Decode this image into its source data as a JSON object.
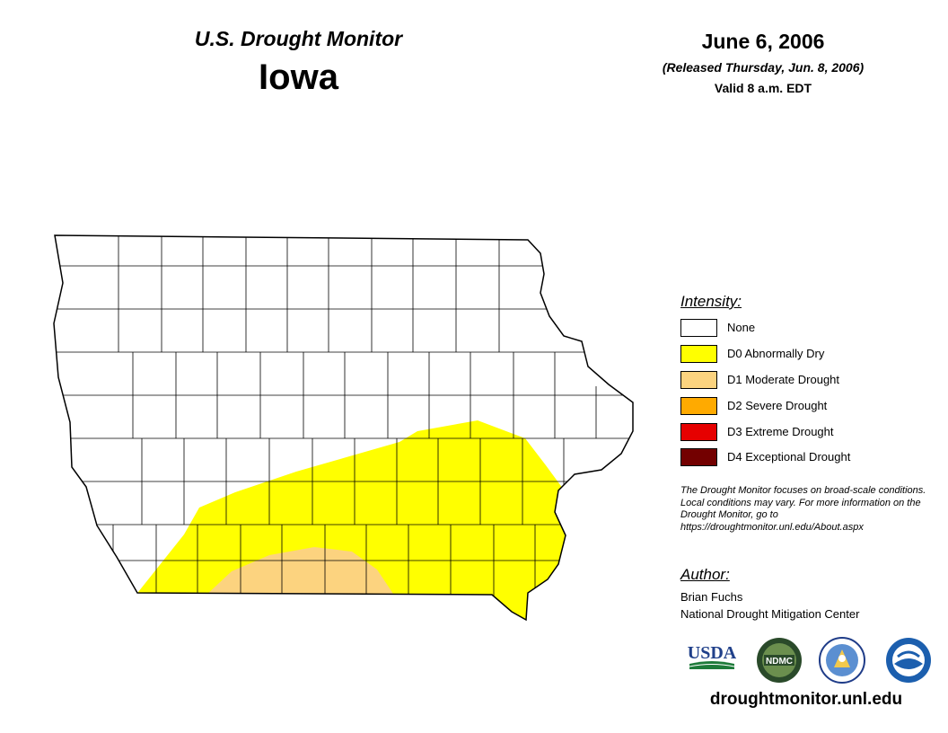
{
  "header": {
    "subtitle": "U.S. Drought Monitor",
    "state": "Iowa",
    "date": "June 6, 2006",
    "released": "(Released Thursday, Jun. 8, 2006)",
    "valid": "Valid 8 a.m. EDT"
  },
  "legend": {
    "title": "Intensity:",
    "items": [
      {
        "label": "None",
        "color": "#ffffff"
      },
      {
        "label": "D0 Abnormally Dry",
        "color": "#ffff00"
      },
      {
        "label": "D1 Moderate Drought",
        "color": "#fcd37f"
      },
      {
        "label": "D2 Severe Drought",
        "color": "#ffaa00"
      },
      {
        "label": "D3 Extreme Drought",
        "color": "#e60000"
      },
      {
        "label": "D4 Exceptional Drought",
        "color": "#730000"
      }
    ]
  },
  "note": "The Drought Monitor focuses on broad-scale conditions. Local conditions may vary. For more information on the Drought Monitor, go to https://droughtmonitor.unl.edu/About.aspx",
  "author": {
    "title": "Author:",
    "name": "Brian Fuchs",
    "organization": "National Drought Mitigation Center"
  },
  "logos": {
    "usda": "USDA",
    "ndmc": "NDMC"
  },
  "website": "droughtmonitor.unl.edu",
  "map": {
    "region": "Iowa counties",
    "drought_areas": [
      {
        "category": "D0",
        "location": "southern and southeastern Iowa"
      },
      {
        "category": "D1",
        "location": "south-central Iowa along the Missouri border"
      }
    ]
  }
}
